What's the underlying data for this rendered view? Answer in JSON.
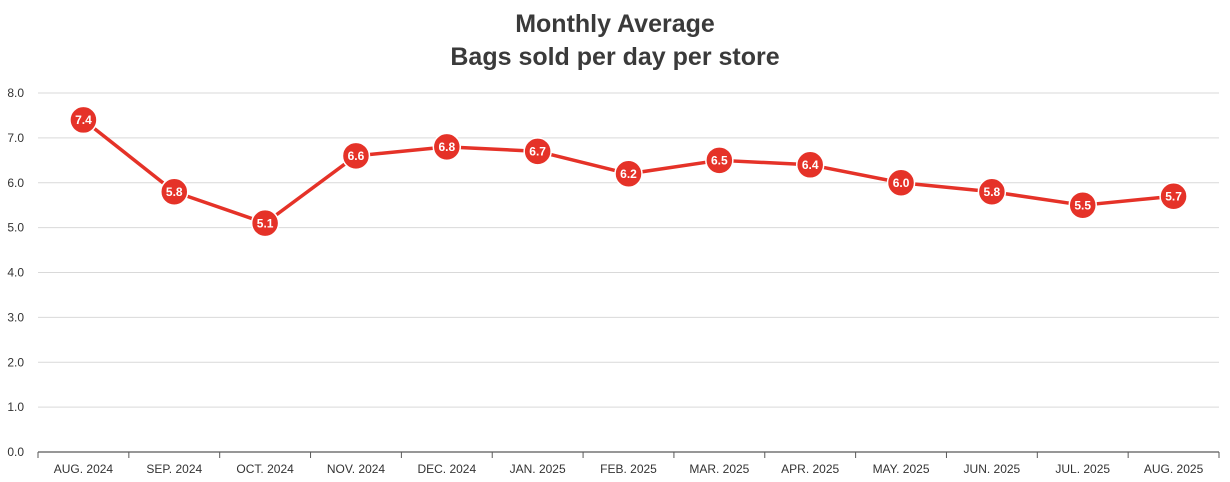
{
  "chart_data": {
    "type": "line",
    "title": "Monthly Average",
    "subtitle": "Bags sold per day per store",
    "xlabel": "",
    "ylabel": "",
    "categories": [
      "AUG. 2024",
      "SEP. 2024",
      "OCT. 2024",
      "NOV. 2024",
      "DEC. 2024",
      "JAN. 2025",
      "FEB. 2025",
      "MAR. 2025",
      "APR. 2025",
      "MAY. 2025",
      "JUN. 2025",
      "JUL. 2025",
      "AUG. 2025"
    ],
    "series": [
      {
        "values": [
          7.4,
          5.8,
          5.1,
          6.6,
          6.8,
          6.7,
          6.2,
          6.5,
          6.4,
          6.0,
          5.8,
          5.5,
          5.7
        ],
        "color": "#e53228"
      }
    ],
    "ylim": [
      0,
      8
    ],
    "yticks": [
      "0.0",
      "1.0",
      "2.0",
      "3.0",
      "4.0",
      "5.0",
      "6.0",
      "7.0",
      "8.0"
    ],
    "grid": true,
    "data_labels": true,
    "legend": "none",
    "gridline_color": "#d9d9d9",
    "axis_color": "#595959"
  }
}
